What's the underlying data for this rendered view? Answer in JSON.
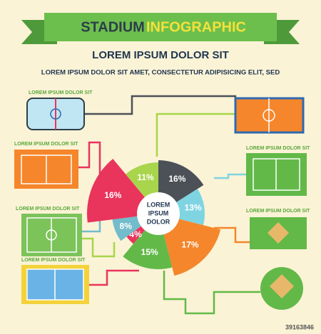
{
  "chart_data": {
    "type": "pie",
    "title": "STADIUM",
    "title_accent": "INFOGRAPHIC",
    "subtitle": "LOREM IPSUM DOLOR SIT",
    "text": "LOREM IPSUM DOLOR SIT AMET, CONSECTETUR  ADIPISICING ELIT, SED",
    "center_label": [
      "LOREM",
      "IPSUM",
      "DOLOR"
    ],
    "categories": [
      null,
      null,
      null,
      null,
      null,
      null,
      null,
      null
    ],
    "values": [
      16,
      13,
      17,
      15,
      4,
      8,
      16,
      11
    ],
    "value_labels": [
      "16%",
      "13%",
      "17%",
      "15%",
      "4%",
      "8%",
      "16%",
      "11%"
    ],
    "colors": [
      "#4c5158",
      "#7fd4e2",
      "#f5862b",
      "#62b948",
      "#e9345c",
      "#72bccb",
      "#e9345c",
      "#a8d54b"
    ],
    "annotations": [
      "LOREM IPSUM DOLOR SIT",
      "LOREM IPSUM DOLOR SIT",
      "LOREM IPSUM DOLOR SIT",
      "LOREM IPSUM DOLOR SIT",
      "LOREM IPSUM DOLOR SIT",
      "LOREM IPSUM DOLOR SIT"
    ],
    "image_id": "39163846"
  }
}
